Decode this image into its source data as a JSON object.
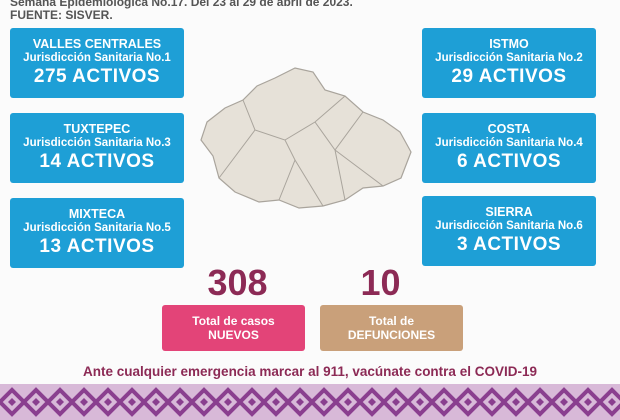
{
  "header": {
    "title": "Semana Epidemiológica No.17. Del 23 al 29 de abril de 2023.",
    "source": "FUENTE: SISVER."
  },
  "regions": [
    {
      "name": "VALLES CENTRALES",
      "jurisdiction": "Jurisdicción Sanitaria No.1",
      "active": "275 ACTIVOS"
    },
    {
      "name": "ISTMO",
      "jurisdiction": "Jurisdicción Sanitaria No.2",
      "active": "29 ACTIVOS"
    },
    {
      "name": "TUXTEPEC",
      "jurisdiction": "Jurisdicción Sanitaria No.3",
      "active": "14 ACTIVOS"
    },
    {
      "name": "COSTA",
      "jurisdiction": "Jurisdicción Sanitaria No.4",
      "active": "6 ACTIVOS"
    },
    {
      "name": "MIXTECA",
      "jurisdiction": "Jurisdicción Sanitaria No.5",
      "active": "13 ACTIVOS"
    },
    {
      "name": "SIERRA",
      "jurisdiction": "Jurisdicción Sanitaria No.6",
      "active": "3 ACTIVOS"
    }
  ],
  "totals": [
    {
      "value": "308",
      "label_line1": "Total de casos",
      "label_line2": "NUEVOS"
    },
    {
      "value": "10",
      "label_line1": "Total de",
      "label_line2": "DEFUNCIONES"
    }
  ],
  "footer": "Ante cualquier emergencia marcar al 911, vacúnate contra el COVID-19"
}
